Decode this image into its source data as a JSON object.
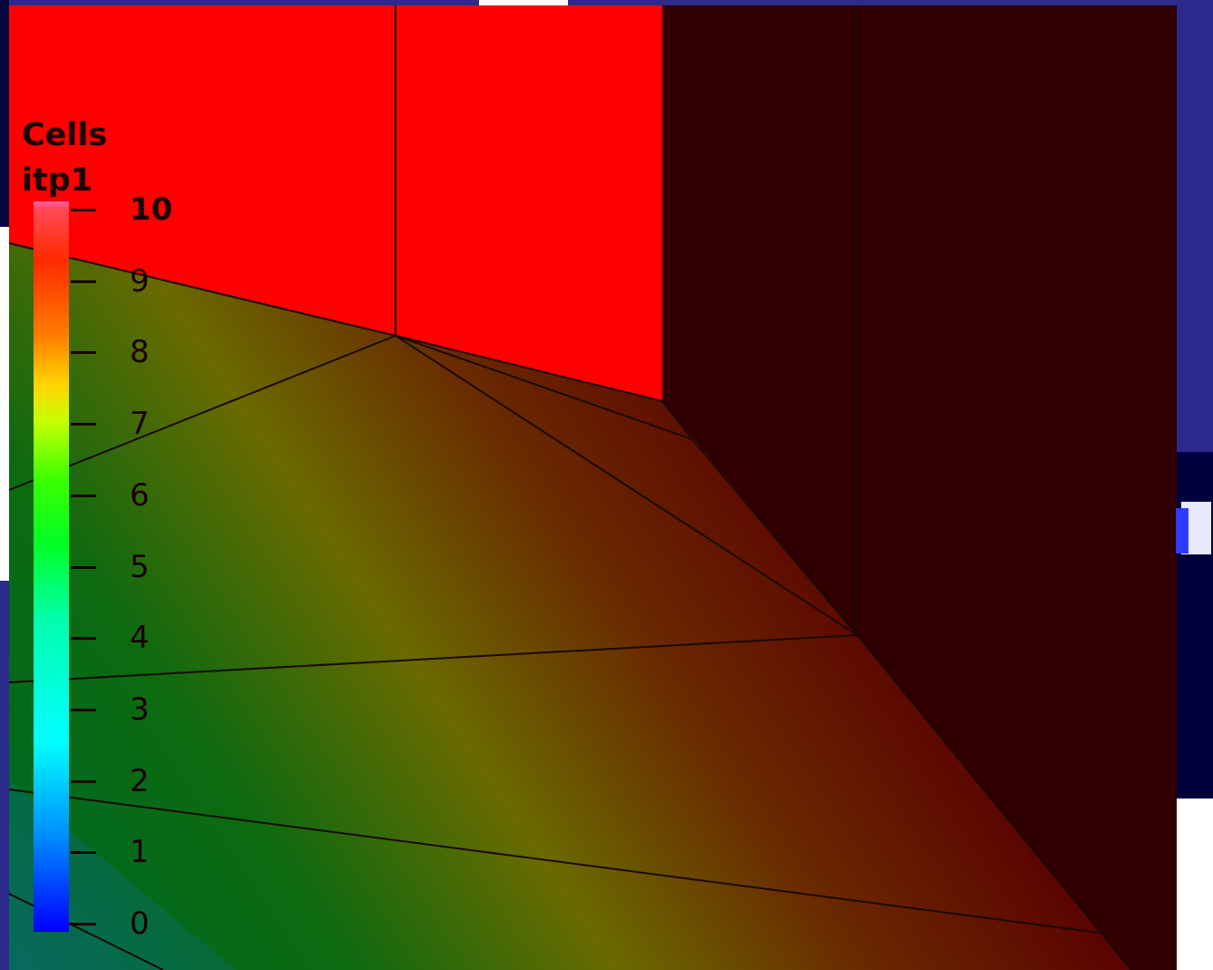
{
  "legend": {
    "title_line1": "Cells",
    "title_line2": "itp1",
    "ticks": [
      "0",
      "1",
      "2",
      "3",
      "4",
      "5",
      "6",
      "7",
      "8",
      "9",
      "10"
    ],
    "min": 0,
    "max": 10
  },
  "colors": {
    "background": "#2c2a8c",
    "red_block": "#ff0000",
    "dark_block": "#300000",
    "mesh_edge": "#1a0a00"
  }
}
